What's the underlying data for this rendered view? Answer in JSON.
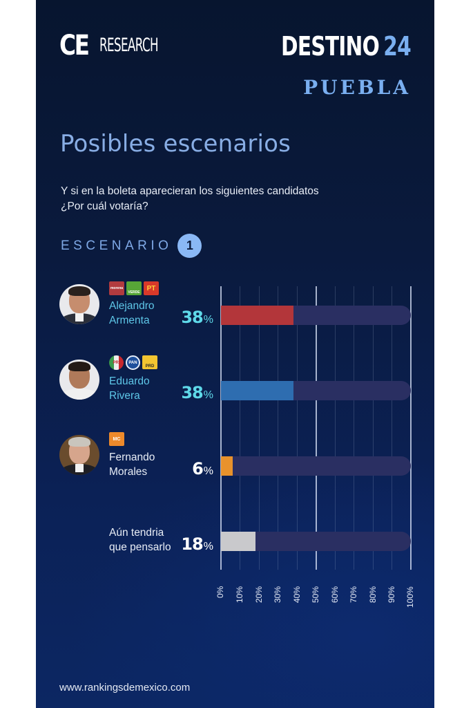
{
  "header": {
    "logo_ce": "CE",
    "logo_research": "RESEARCH",
    "brand_white": "DESTINO",
    "brand_blue": "24",
    "region": "PUEBLA"
  },
  "title": "Posibles escenarios",
  "question": {
    "line1": "Y si en la boleta aparecieran los siguientes candidatos",
    "line2": "¿Por cuál votaría?"
  },
  "scenario": {
    "label": "ESCENARIO",
    "number": "1"
  },
  "candidates": [
    {
      "first": "Alejandro",
      "last": "Armenta",
      "pct": "38",
      "pct_sign": "%",
      "bar_color": "#b3363a",
      "name_color": "#5ec7e8",
      "pct_color": "#5fd9e9",
      "parties": [
        {
          "name": "morena",
          "label": "morena",
          "bg": "#b23b3f",
          "fg": "#ffffff"
        },
        {
          "name": "verde",
          "label": "VERDE",
          "bg": "#57a637",
          "fg": "#ffffff"
        },
        {
          "name": "pt",
          "label": "PT",
          "bg": "#d8392a",
          "fg": "#ffd23a"
        }
      ]
    },
    {
      "first": "Eduardo",
      "last": "Rivera",
      "pct": "38",
      "pct_sign": "%",
      "bar_color": "#2e6db0",
      "name_color": "#5ec7e8",
      "pct_color": "#5fd9e9",
      "parties": [
        {
          "name": "pri",
          "label": "PRI",
          "bg": "#e8e8e8",
          "fg": "#c0282d"
        },
        {
          "name": "pan",
          "label": "PAN",
          "bg": "#1d4f9c",
          "fg": "#ffffff"
        },
        {
          "name": "prd",
          "label": "PRD",
          "bg": "#f2c531",
          "fg": "#2a2a2a"
        }
      ]
    },
    {
      "first": "Fernando",
      "last": "Morales",
      "pct": "6",
      "pct_sign": "%",
      "bar_color": "#e8922c",
      "name_color": "#e8edf6",
      "pct_color": "#ffffff",
      "parties": [
        {
          "name": "movimiento-ciudadano",
          "label": "MC",
          "bg": "#ee8a2b",
          "fg": "#ffffff"
        }
      ]
    },
    {
      "first": "Aún tendria",
      "last": "que pensarlo",
      "pct": "18",
      "pct_sign": "%",
      "bar_color": "#c9c9cc",
      "name_color": "#e8edf6",
      "pct_color": "#ffffff",
      "parties": []
    }
  ],
  "axis_ticks": [
    "0%",
    "10%",
    "20%",
    "30%",
    "40%",
    "50%",
    "60%",
    "70%",
    "80%",
    "90%",
    "100%"
  ],
  "footer": "www.rankingsdemexico.com",
  "chart_data": {
    "type": "bar",
    "orientation": "horizontal",
    "title": "Posibles escenarios — Escenario 1",
    "subtitle": "Y si en la boleta aparecieran los siguientes candidatos ¿Por cuál votaría?",
    "categories": [
      "Alejandro Armenta",
      "Eduardo Rivera",
      "Fernando Morales",
      "Aún tendria que pensarlo"
    ],
    "values": [
      38,
      38,
      6,
      18
    ],
    "colors": [
      "#b3363a",
      "#2e6db0",
      "#e8922c",
      "#c9c9cc"
    ],
    "xlabel": "",
    "ylabel": "",
    "xlim": [
      0,
      100
    ],
    "x_tick_labels": [
      "0%",
      "10%",
      "20%",
      "30%",
      "40%",
      "50%",
      "60%",
      "70%",
      "80%",
      "90%",
      "100%"
    ],
    "unit": "%",
    "grid": true,
    "legend": "none",
    "region": "Puebla"
  }
}
